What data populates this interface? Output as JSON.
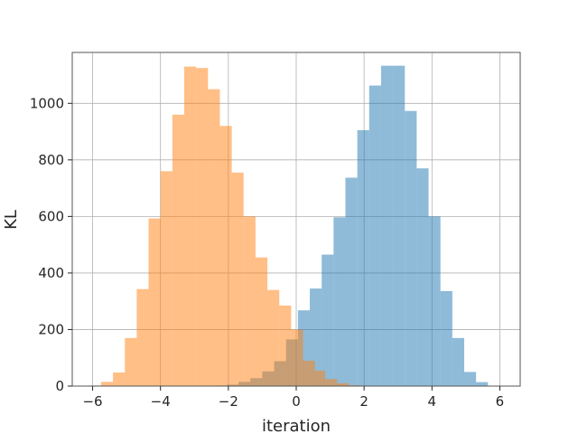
{
  "chart_data": {
    "type": "bar",
    "xlabel": "iteration",
    "ylabel": "KL",
    "xlim": [
      -6.6,
      6.6
    ],
    "ylim": [
      0,
      1180
    ],
    "xticks": [
      -6,
      -4,
      -2,
      0,
      2,
      4,
      6
    ],
    "xtick_labels": [
      "−6",
      "−4",
      "−2",
      "0",
      "2",
      "4",
      "6"
    ],
    "yticks": [
      0,
      200,
      400,
      600,
      800,
      1000
    ],
    "ytick_labels": [
      "0",
      "200",
      "400",
      "600",
      "800",
      "1000"
    ],
    "grid": true,
    "series": [
      {
        "color": "#1f77b4",
        "alpha": 0.5,
        "bin_edges": [
          -2.4,
          -2.05,
          -1.7,
          -1.35,
          -1.0,
          -0.65,
          -0.3,
          0.05,
          0.4,
          0.75,
          1.1,
          1.45,
          1.8,
          2.15,
          2.5,
          2.85,
          3.2,
          3.55,
          3.9,
          4.25,
          4.6,
          4.95,
          5.3,
          5.65
        ],
        "counts": [
          2,
          5,
          15,
          28,
          52,
          88,
          165,
          268,
          345,
          465,
          597,
          737,
          905,
          1063,
          1133,
          1133,
          973,
          770,
          600,
          336,
          170,
          50,
          14
        ]
      },
      {
        "color": "#ff7f0e",
        "alpha": 0.5,
        "bin_edges": [
          -6.1,
          -5.75,
          -5.4,
          -5.05,
          -4.7,
          -4.35,
          -4.0,
          -3.65,
          -3.3,
          -2.95,
          -2.6,
          -2.25,
          -1.9,
          -1.55,
          -1.2,
          -0.85,
          -0.5,
          -0.15,
          0.2,
          0.55,
          0.85,
          1.2,
          1.55,
          1.9
        ],
        "counts": [
          2,
          15,
          48,
          170,
          343,
          593,
          760,
          960,
          1130,
          1125,
          1050,
          920,
          755,
          600,
          455,
          340,
          285,
          200,
          90,
          55,
          25,
          10,
          3
        ]
      }
    ]
  }
}
